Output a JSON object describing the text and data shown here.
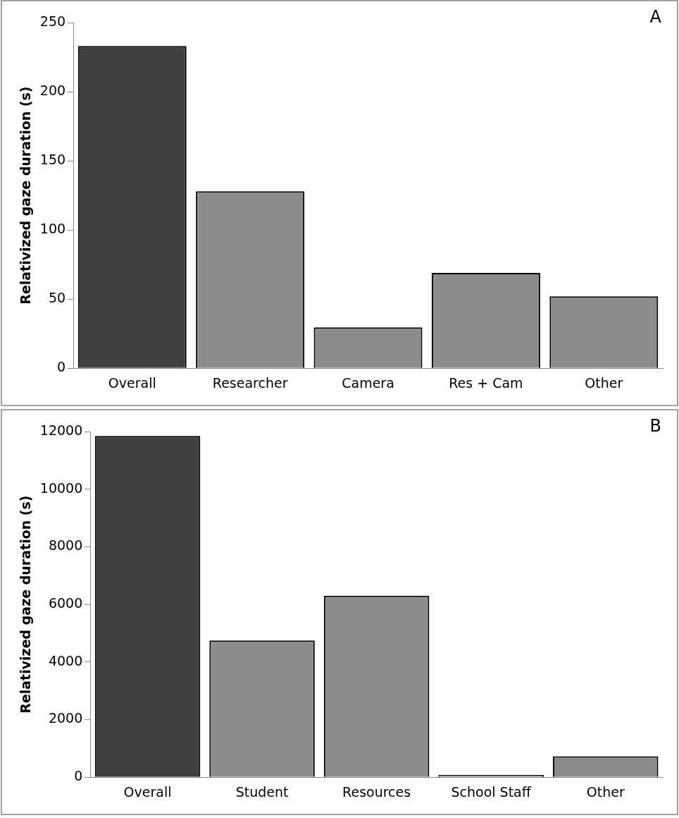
{
  "chart_data": [
    {
      "type": "bar",
      "ylabel": "Relativized gaze duration (s)",
      "categories": [
        "Overall",
        "Researcher",
        "Camera",
        "Res + Cam",
        "Other"
      ],
      "values": [
        233,
        128,
        29.5,
        69,
        52
      ],
      "colors": [
        "#404040",
        "#8c8c8c",
        "#8c8c8c",
        "#8c8c8c",
        "#8c8c8c"
      ],
      "ylim": [
        0,
        250
      ],
      "yticks": [
        0,
        50,
        100,
        150,
        200,
        250
      ],
      "annotations": [
        "A"
      ]
    },
    {
      "type": "bar",
      "ylabel": "Relativized gaze duration (s)",
      "categories": [
        "Overall",
        "Student",
        "Resources",
        "School Staff",
        "Other"
      ],
      "values": [
        11850,
        4750,
        6300,
        80,
        725
      ],
      "colors": [
        "#404040",
        "#8c8c8c",
        "#8c8c8c",
        "#8c8c8c",
        "#8c8c8c"
      ],
      "ylim": [
        0,
        12000
      ],
      "yticks": [
        0,
        2000,
        4000,
        6000,
        8000,
        10000,
        12000
      ],
      "annotations": [
        "B"
      ]
    }
  ]
}
